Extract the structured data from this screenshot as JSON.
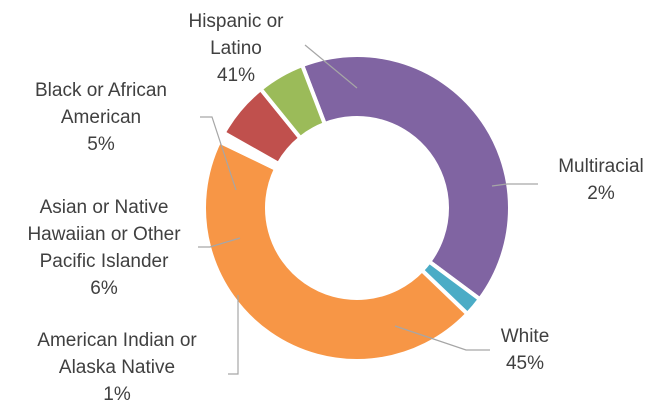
{
  "chart_data": {
    "type": "pie",
    "style": "donut",
    "slices": [
      {
        "category": "Hispanic or Latino",
        "value": 41,
        "display": "41%",
        "color": "#8064a2"
      },
      {
        "category": "Multiracial",
        "value": 2,
        "display": "2%",
        "color": "#4bacc6"
      },
      {
        "category": "White",
        "value": 45,
        "display": "45%",
        "color": "#f79646"
      },
      {
        "category": "American Indian or Alaska Native",
        "value": 1,
        "display": "1%",
        "color": "#ffffff"
      },
      {
        "category": "Asian or Native Hawaiian or Other Pacific Islander",
        "value": 6,
        "display": "6%",
        "color": "#c0504d"
      },
      {
        "category": "Black or African American",
        "value": 5,
        "display": "5%",
        "color": "#9bbb59"
      }
    ],
    "labels": [
      {
        "lines": [
          "Hispanic or",
          "Latino"
        ],
        "pct": "41%"
      },
      {
        "lines": [
          "Multiracial"
        ],
        "pct": "2%"
      },
      {
        "lines": [
          "White"
        ],
        "pct": "45%"
      },
      {
        "lines": [
          "American Indian or",
          "Alaska Native"
        ],
        "pct": "1%"
      },
      {
        "lines": [
          "Asian or Native",
          "Hawaiian or Other",
          "Pacific Islander"
        ],
        "pct": "6%"
      },
      {
        "lines": [
          "Black or African",
          "American"
        ],
        "pct": "5%"
      }
    ]
  }
}
